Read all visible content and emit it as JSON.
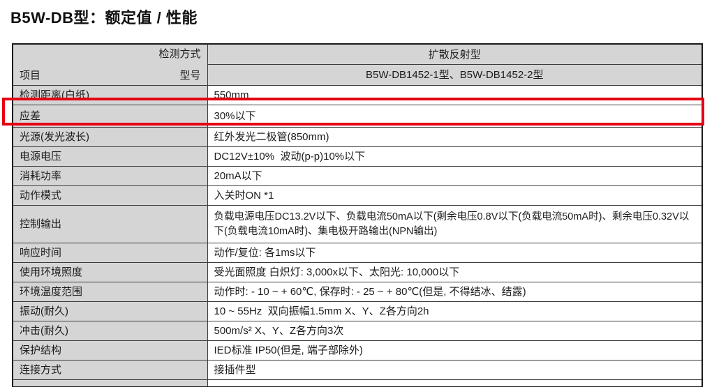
{
  "page": {
    "title": "B5W-DB型：额定值 / 性能"
  },
  "table": {
    "highlight_color": "#e60012",
    "label_cell_bg": "#d5d5d5",
    "header": {
      "detection_method_label": "检测方式",
      "item_label": "项目",
      "model_label": "型号",
      "type_value": "扩散反射型",
      "model_value": "B5W-DB1452-1型、B5W-DB1452-2型"
    },
    "rows": [
      {
        "label": "检测距离(白纸)",
        "value": "550mm",
        "highlight": false
      },
      {
        "label": "应差",
        "value": "30%以下",
        "highlight": true
      },
      {
        "label": "光源(发光波长)",
        "value": "红外发光二极管(850mm)",
        "highlight": false
      },
      {
        "label": "电源电压",
        "value": "DC12V±10%  波动(p-p)10%以下",
        "highlight": false
      },
      {
        "label": "消耗功率",
        "value": "20mA以下",
        "highlight": false
      },
      {
        "label": "动作模式",
        "value": "入关时ON *1",
        "highlight": false
      },
      {
        "label": "控制输出",
        "value": "负载电源电压DC13.2V以下、负载电流50mA以下(剩余电压0.8V以下(负载电流50mA时)、剩余电压0.32V以下(负载电流10mA时)、集电极开路输出(NPN输出)",
        "highlight": false
      },
      {
        "label": "响应时间",
        "value": "动作/复位: 各1ms以下",
        "highlight": false
      },
      {
        "label": "使用环境照度",
        "value": "受光面照度 白炽灯: 3,000x以下、太阳光: 10,000以下",
        "highlight": false
      },
      {
        "label": "环境温度范围",
        "value": "动作时: - 10 ~ + 60℃, 保存时: - 25 ~ + 80℃(但是, 不得结冰、结露)",
        "highlight": false
      },
      {
        "label": "振动(耐久)",
        "value": "10 ~ 55Hz  双向振幅1.5mm X、Y、Z各方向2h",
        "highlight": false
      },
      {
        "label": "冲击(耐久)",
        "value": "500m/s² X、Y、Z各方向3次",
        "highlight": false
      },
      {
        "label": "保护结构",
        "value": "IED标准 IP50(但是, 端子部除外)",
        "highlight": false
      },
      {
        "label": "连接方式",
        "value": "接插件型",
        "highlight": false
      }
    ]
  }
}
